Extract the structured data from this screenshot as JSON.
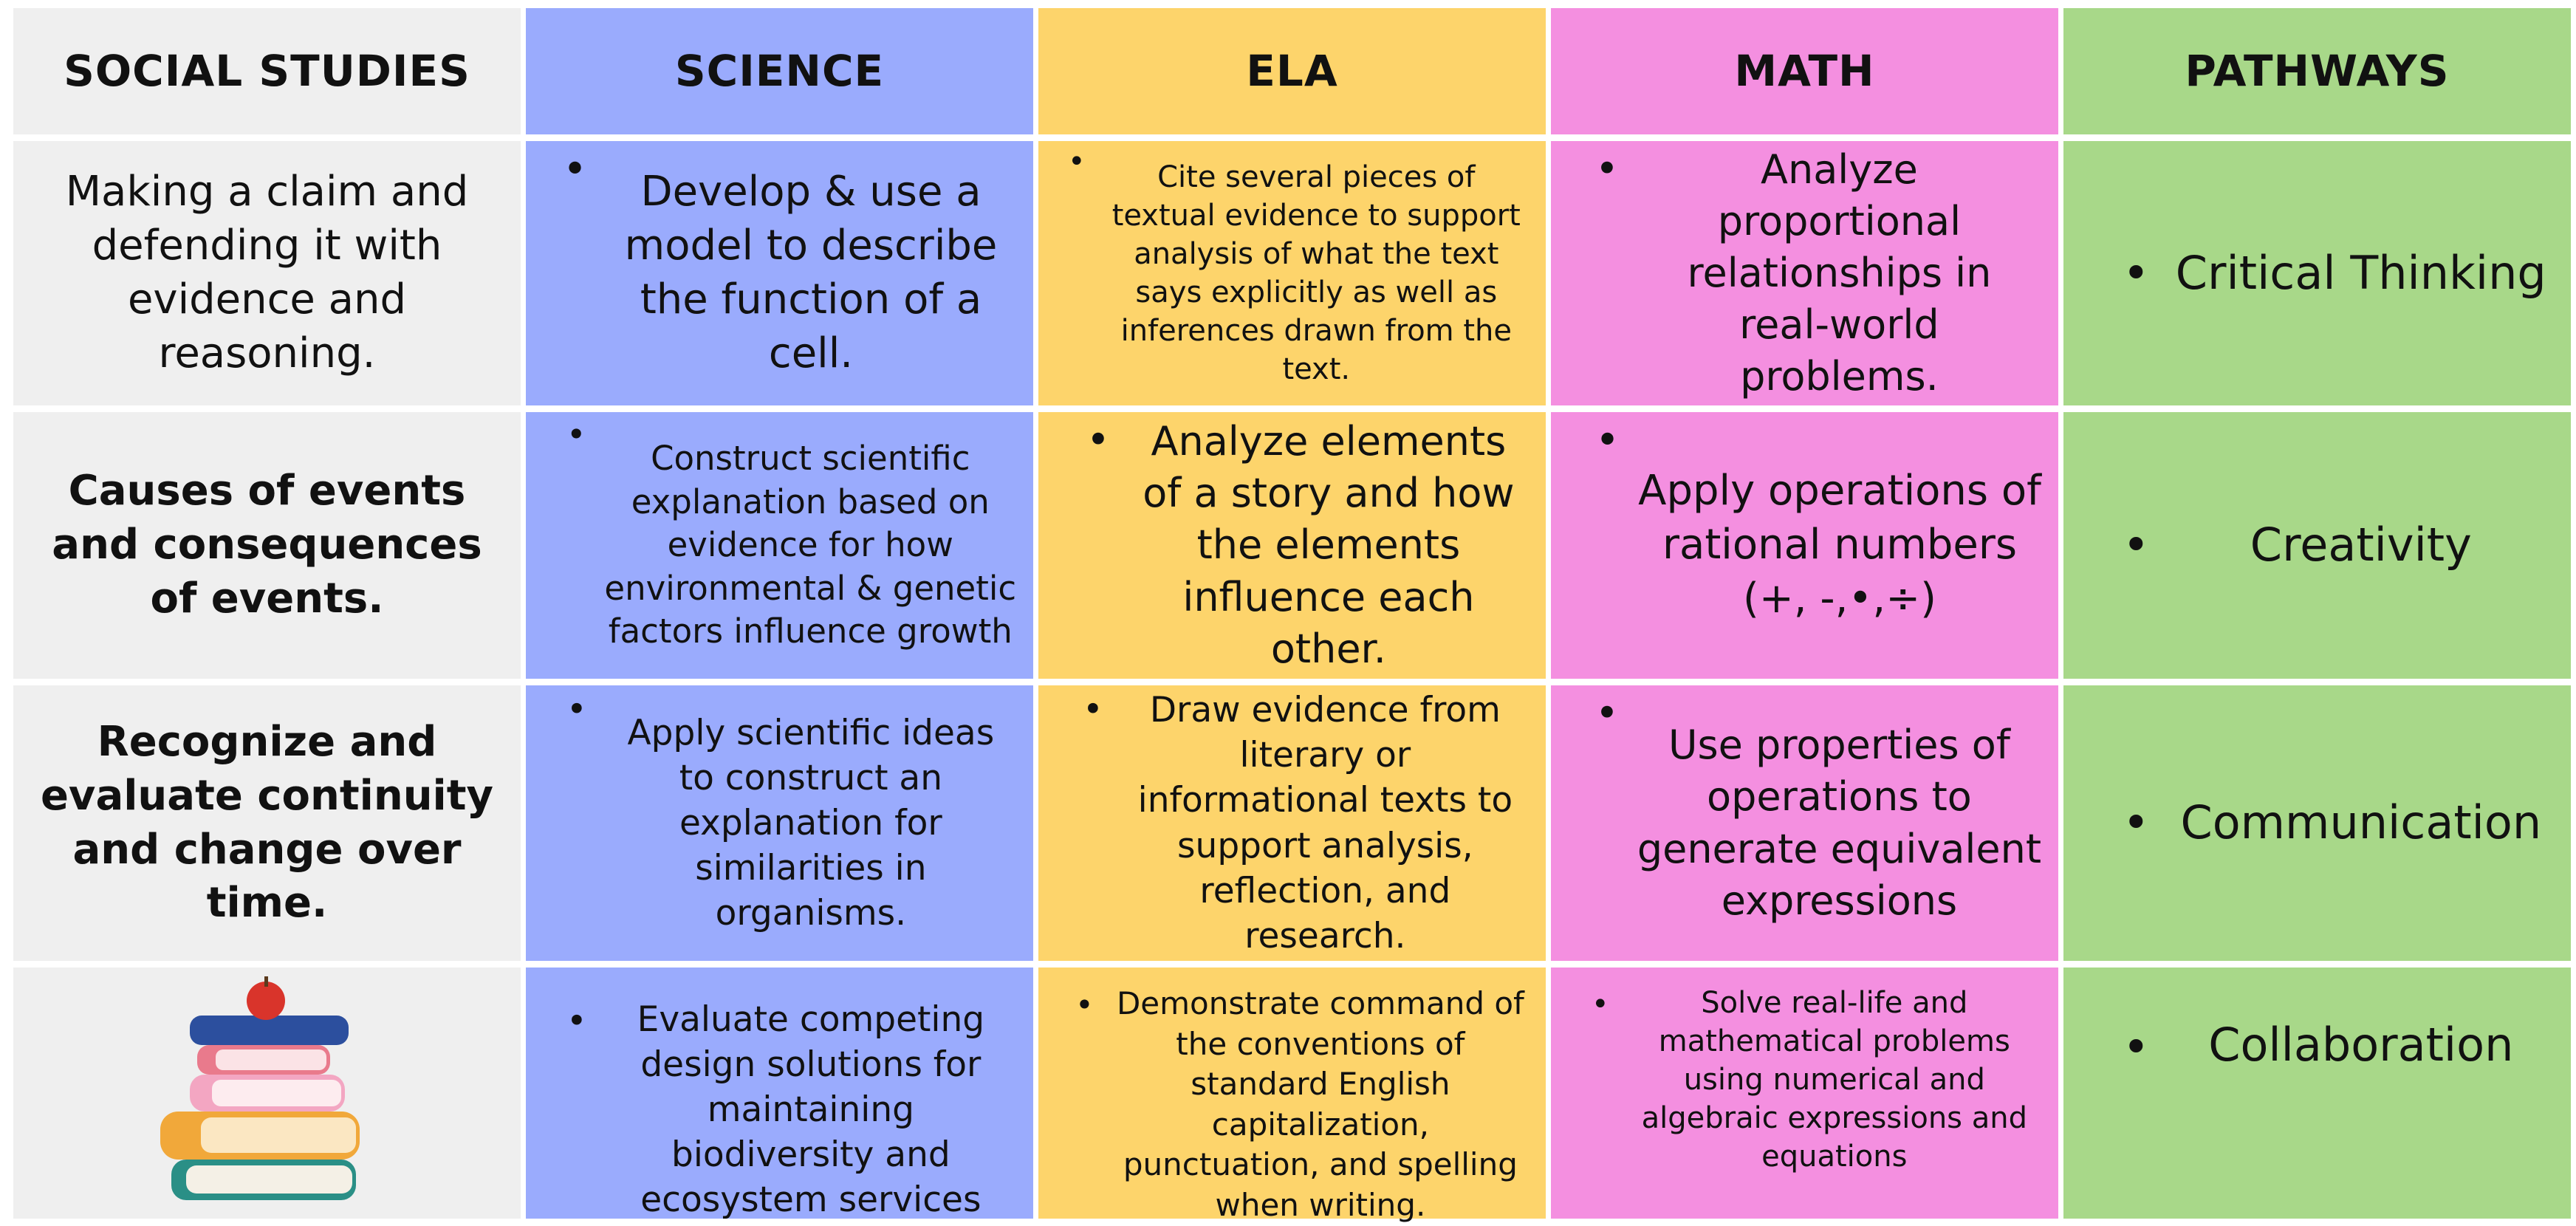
{
  "header": {
    "columns": [
      "SOCIAL STUDIES",
      "SCIENCE",
      "ELA",
      "MATH",
      "PATHWAYS"
    ]
  },
  "table": {
    "rows": [
      {
        "social_studies": "Making a claim and defending it with evidence and reasoning.",
        "science": "Develop & use a model to describe the function of a cell.",
        "ela": "Cite several pieces of textual evidence to support analysis of what the text says explicitly as well as inferences drawn from the text.",
        "math": "Analyze proportional relationships in real-world problems.",
        "pathways": "Critical Thinking"
      },
      {
        "social_studies": "Causes of events and consequences of events.",
        "science": "Construct scientific explanation based on evidence for how environmental & genetic factors influence growth",
        "ela": "Analyze elements of a story and how the elements influence each other.",
        "math": "Apply operations of rational numbers (+, -,•,÷)",
        "pathways": "Creativity"
      },
      {
        "social_studies": "Recognize and evaluate continuity and change over time.",
        "science": "Apply scientific ideas to construct an explanation for similarities in organisms.",
        "ela": "Draw evidence from literary or informational texts to support analysis, reflection, and research.",
        "math": "Use properties of operations to generate equivalent expressions",
        "pathways": "Communication"
      },
      {
        "science": "Evaluate competing design solutions for maintaining biodiversity and ecosystem services",
        "ela": "Demonstrate command of the conventions of standard English capitalization, punctuation, and spelling when writing.",
        "math": "Solve real-life and mathematical problems using numerical and algebraic expressions and equations",
        "pathways": "Collaboration"
      }
    ]
  }
}
